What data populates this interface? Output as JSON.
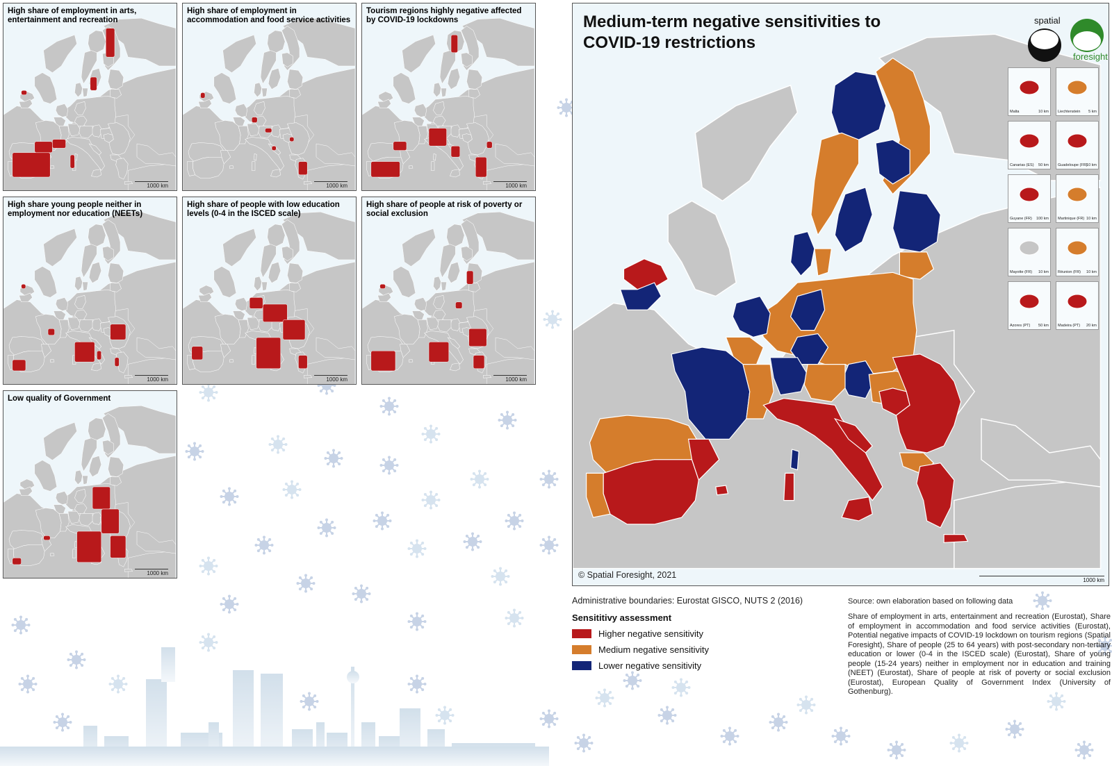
{
  "colors": {
    "higher": "#b8191b",
    "medium": "#d57d2c",
    "lower": "#132577",
    "land_grey": "#c6c6c6",
    "sea": "#eef6fa",
    "virus_icon": "#c7d3e6"
  },
  "small_maps": [
    {
      "title": "High share of employment in arts, entertainment and recreation",
      "scale": "1000 km"
    },
    {
      "title": "High share of employment in accommodation and food service activities",
      "scale": "1000 km"
    },
    {
      "title": "Tourism regions highly negative affected by COVID-19 lockdowns",
      "scale": "1000 km"
    },
    {
      "title": "High share young people neither in employment nor education (NEETs)",
      "scale": "1000 km"
    },
    {
      "title": "High share of people with low education levels (0-4 in the ISCED scale)",
      "scale": "1000 km"
    },
    {
      "title": "High share of people at risk of poverty or social exclusion",
      "scale": "1000 km"
    },
    {
      "title": "Low quality of Government",
      "scale": "1000 km"
    }
  ],
  "main_map": {
    "title": "Medium-term negative sensitivities to COVID-19 restrictions",
    "copyright": "© Spatial Foresight, 2021",
    "scale": "1000 km",
    "logo": {
      "word1": "spatial",
      "word2": "foresight"
    },
    "insets": [
      {
        "label": "Malta",
        "scale": "10 km"
      },
      {
        "label": "Liechtenstein",
        "scale": "5 km"
      },
      {
        "label": "Canarias (ES)",
        "scale": "50 km"
      },
      {
        "label": "Guadeloupe (FR)",
        "scale": "10 km"
      },
      {
        "label": "Guyane (FR)",
        "scale": "100 km"
      },
      {
        "label": "Martinique (FR)",
        "scale": "10 km"
      },
      {
        "label": "Mayotte (FR)",
        "scale": "10 km"
      },
      {
        "label": "Réunion (FR)",
        "scale": "10 km"
      },
      {
        "label": "Azores (PT)",
        "scale": "50 km"
      },
      {
        "label": "Madeira (PT)",
        "scale": "20 km"
      }
    ]
  },
  "legend": {
    "admin_boundaries": "Administrative boundaries: Eurostat GISCO, NUTS 2 (2016)",
    "title": "Sensititivy assessment",
    "items": [
      {
        "label": "Higher negative sensitivity"
      },
      {
        "label": "Medium negative sensitivity"
      },
      {
        "label": "Lower negative sensitivity"
      }
    ]
  },
  "source": {
    "heading": "Source: own elaboration based on following data",
    "text": "Share of employment in arts, entertainment and recreation (Eurostat), Share of employment in accommodation and food service activities (Eurostat), Potential negative impacts of COVID-19 lockdown on tourism regions (Spatial Foresight), Share of people (25 to 64 years) with post-secondary non-tertiary education or lower (0-4 in the ISCED scale) (Eurostat), Share of young people (15-24 years) neither in employment nor in education and training (NEET) (Eurostat), Share of people at risk of poverty or social exclusion (Eurostat), European Quality of Government Index (University of Gothenburg)."
  }
}
